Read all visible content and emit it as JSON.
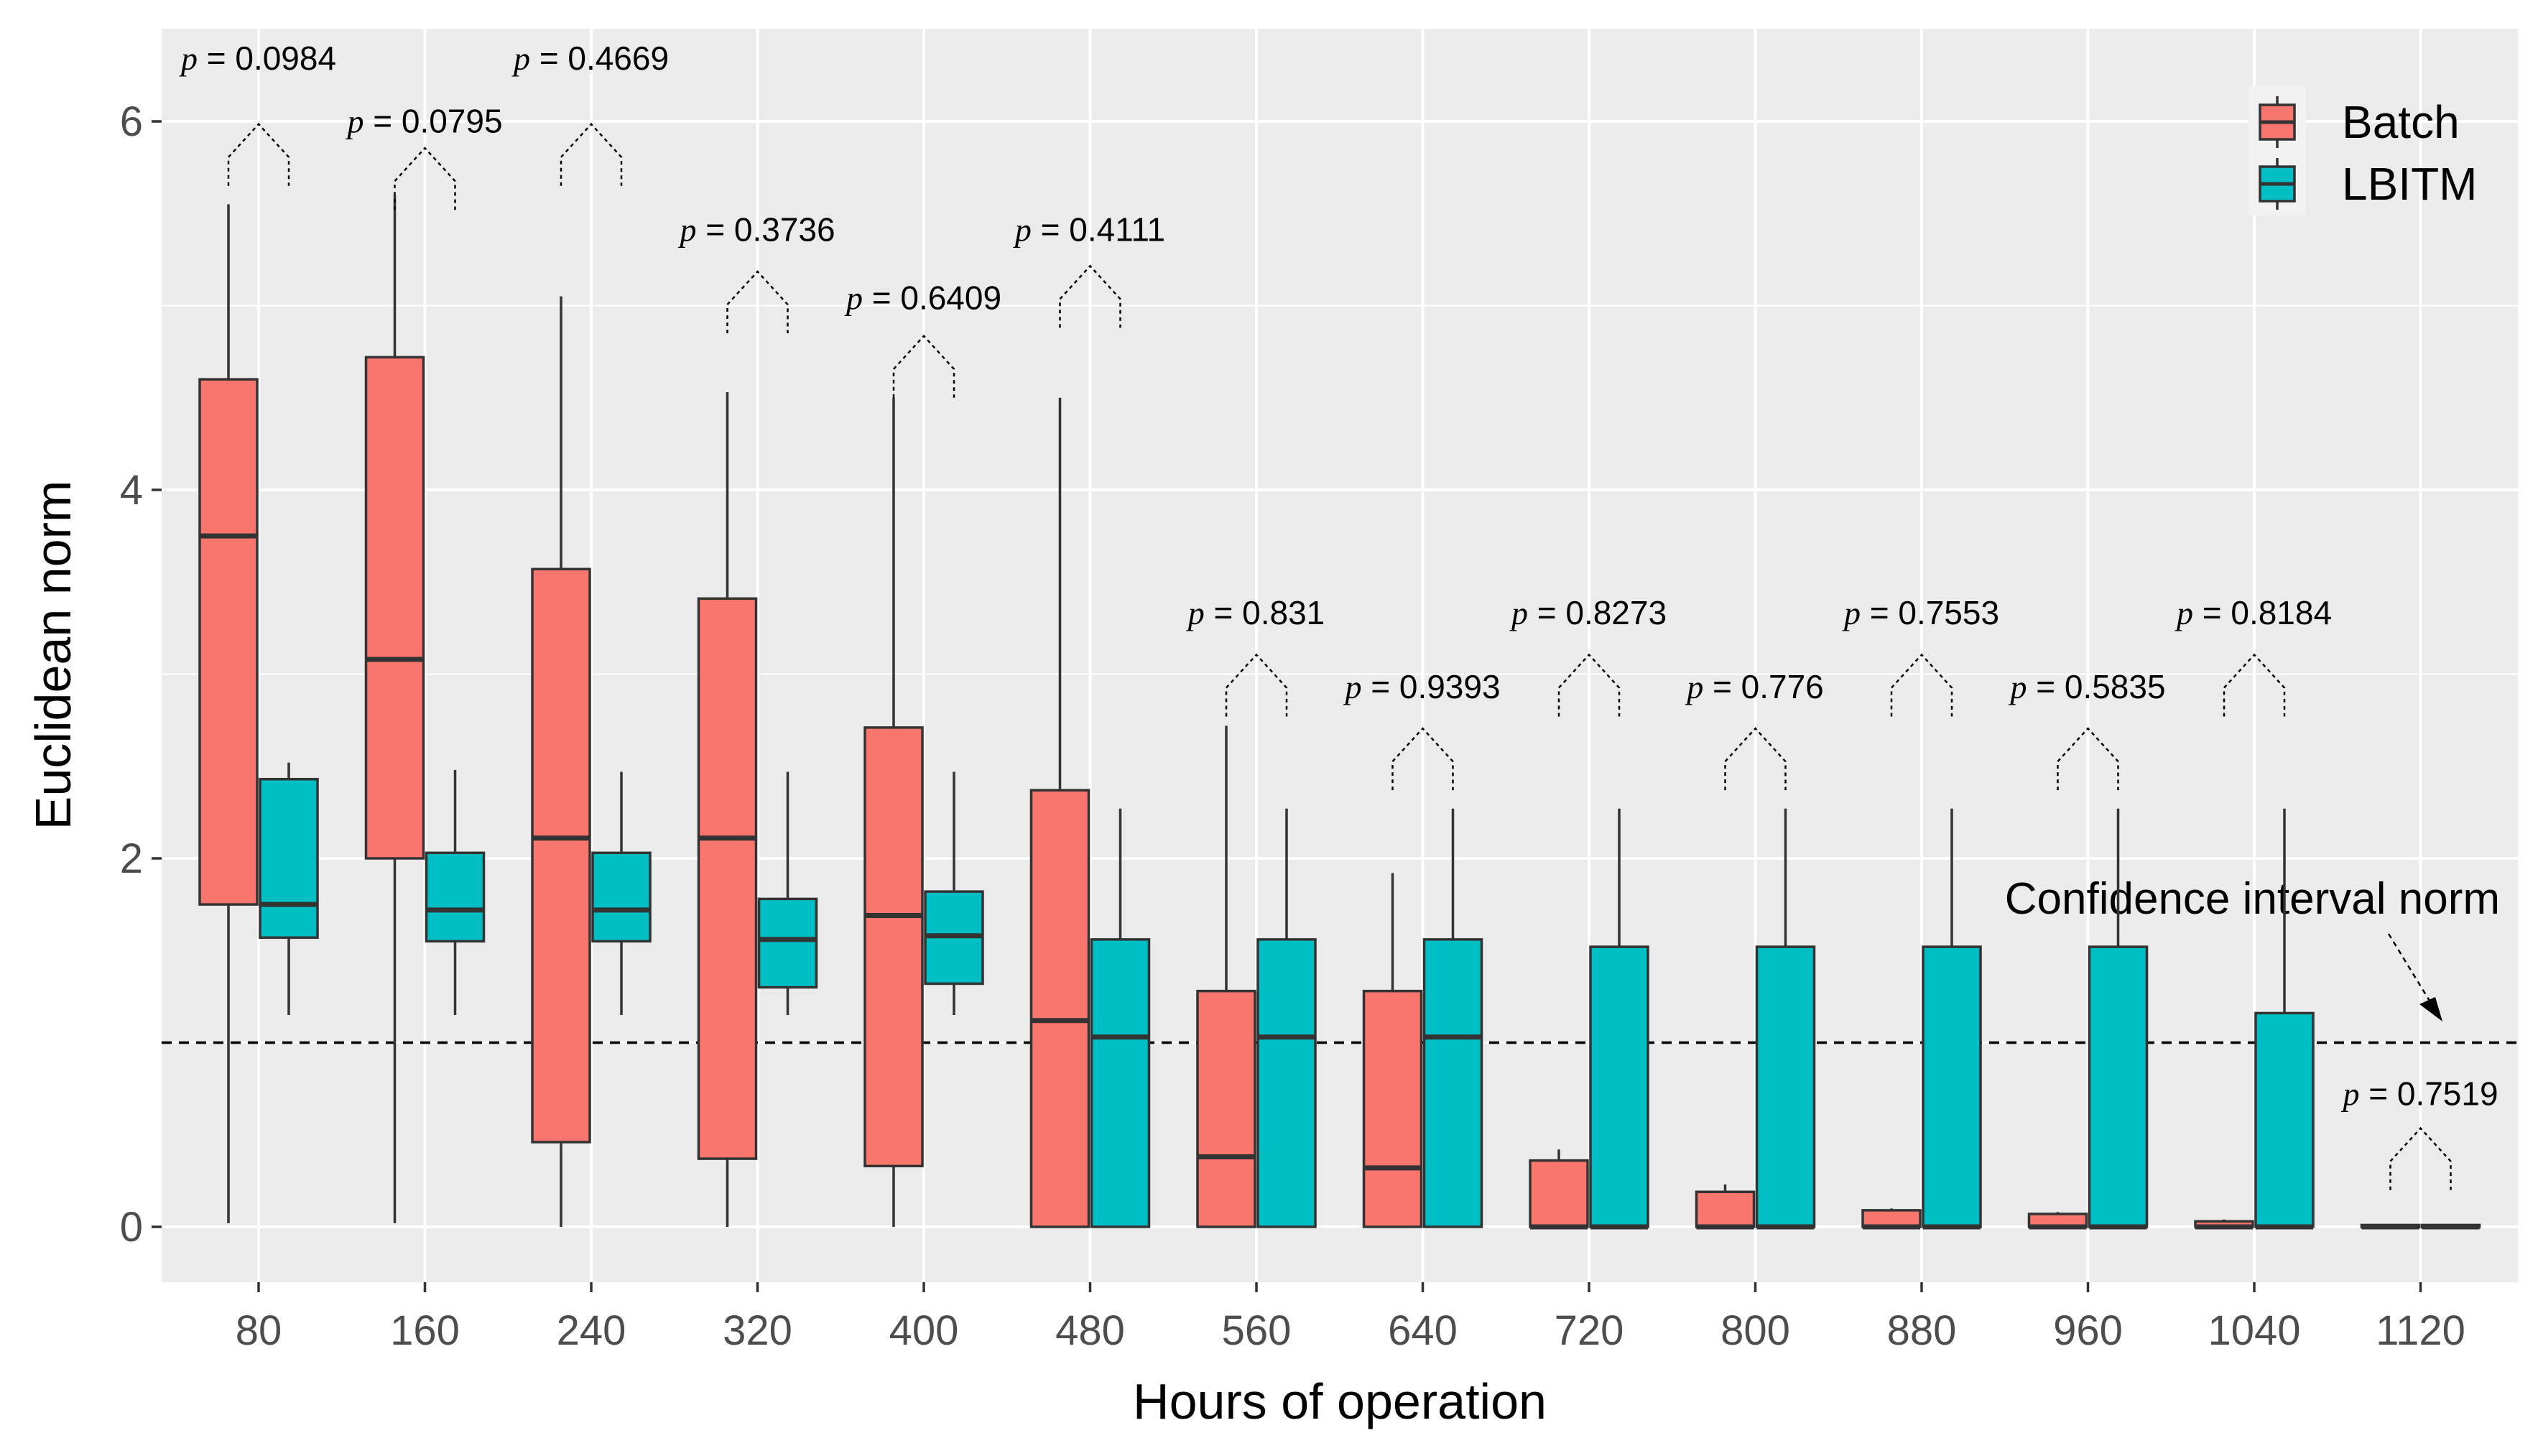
{
  "chart_data": {
    "type": "boxplot",
    "xlabel": "Hours of operation",
    "ylabel": "Euclidean norm",
    "ylim": [
      -0.3,
      6.5
    ],
    "y_ticks": [
      0,
      2,
      4,
      6
    ],
    "categories": [
      "80",
      "160",
      "240",
      "320",
      "400",
      "480",
      "560",
      "640",
      "720",
      "800",
      "880",
      "960",
      "1040",
      "1120"
    ],
    "legend": {
      "position": "top-right",
      "entries": [
        "Batch",
        "LBITM"
      ]
    },
    "colors": {
      "Batch": "#F8766D",
      "LBITM": "#00BFC4",
      "panel": "#EBEBEB",
      "grid": "#FFFFFF",
      "tick_text": "#4D4D4D"
    },
    "series": [
      {
        "name": "Batch",
        "boxes": [
          {
            "min": 0.02,
            "q1": 1.75,
            "median": 3.75,
            "q3": 4.6,
            "max": 5.55
          },
          {
            "min": 0.02,
            "q1": 2.0,
            "median": 3.08,
            "q3": 4.72,
            "max": 5.6
          },
          {
            "min": 0.0,
            "q1": 0.46,
            "median": 2.11,
            "q3": 3.57,
            "max": 5.05
          },
          {
            "min": 0.0,
            "q1": 0.37,
            "median": 2.11,
            "q3": 3.41,
            "max": 4.53
          },
          {
            "min": 0.0,
            "q1": 0.33,
            "median": 1.69,
            "q3": 2.71,
            "max": 4.5
          },
          {
            "min": 0.0,
            "q1": 0.0,
            "median": 1.12,
            "q3": 2.37,
            "max": 4.5
          },
          {
            "min": 0.0,
            "q1": 0.0,
            "median": 0.38,
            "q3": 1.28,
            "max": 2.72
          },
          {
            "min": 0.0,
            "q1": 0.0,
            "median": 0.32,
            "q3": 1.28,
            "max": 1.92
          },
          {
            "min": 0.0,
            "q1": 0.0,
            "median": 0.0,
            "q3": 0.36,
            "max": 0.42
          },
          {
            "min": 0.0,
            "q1": 0.0,
            "median": 0.0,
            "q3": 0.19,
            "max": 0.23
          },
          {
            "min": 0.0,
            "q1": 0.0,
            "median": 0.0,
            "q3": 0.09,
            "max": 0.1
          },
          {
            "min": 0.0,
            "q1": 0.0,
            "median": 0.0,
            "q3": 0.07,
            "max": 0.08
          },
          {
            "min": 0.0,
            "q1": 0.0,
            "median": 0.0,
            "q3": 0.03,
            "max": 0.04
          },
          {
            "min": 0.0,
            "q1": 0.0,
            "median": 0.0,
            "q3": 0.01,
            "max": 0.01
          }
        ]
      },
      {
        "name": "LBITM",
        "boxes": [
          {
            "min": 1.15,
            "q1": 1.57,
            "median": 1.75,
            "q3": 2.43,
            "max": 2.52
          },
          {
            "min": 1.15,
            "q1": 1.55,
            "median": 1.72,
            "q3": 2.03,
            "max": 2.48
          },
          {
            "min": 1.15,
            "q1": 1.55,
            "median": 1.72,
            "q3": 2.03,
            "max": 2.47
          },
          {
            "min": 1.15,
            "q1": 1.3,
            "median": 1.56,
            "q3": 1.78,
            "max": 2.47
          },
          {
            "min": 1.15,
            "q1": 1.32,
            "median": 1.58,
            "q3": 1.82,
            "max": 2.47
          },
          {
            "min": 0.0,
            "q1": 0.0,
            "median": 1.03,
            "q3": 1.56,
            "max": 2.27
          },
          {
            "min": 0.0,
            "q1": 0.0,
            "median": 1.03,
            "q3": 1.56,
            "max": 2.27
          },
          {
            "min": 0.0,
            "q1": 0.0,
            "median": 1.03,
            "q3": 1.56,
            "max": 2.27
          },
          {
            "min": 0.0,
            "q1": 0.0,
            "median": 0.0,
            "q3": 1.52,
            "max": 2.27
          },
          {
            "min": 0.0,
            "q1": 0.0,
            "median": 0.0,
            "q3": 1.52,
            "max": 2.27
          },
          {
            "min": 0.0,
            "q1": 0.0,
            "median": 0.0,
            "q3": 1.52,
            "max": 2.27
          },
          {
            "min": 0.0,
            "q1": 0.0,
            "median": 0.0,
            "q3": 1.52,
            "max": 2.27
          },
          {
            "min": 0.0,
            "q1": 0.0,
            "median": 0.0,
            "q3": 1.16,
            "max": 2.27
          },
          {
            "min": 0.0,
            "q1": 0.0,
            "median": 0.0,
            "q3": 0.01,
            "max": 0.01
          }
        ]
      }
    ],
    "reference_line": {
      "y": 1.0,
      "style": "dashed",
      "label": "Confidence interval norm"
    },
    "p_values": [
      {
        "category": "80",
        "text": "0.0984",
        "bracket_y": 5.65,
        "label_y": 6.28
      },
      {
        "category": "160",
        "text": "0.0795",
        "bracket_y": 5.52,
        "label_y": 5.94
      },
      {
        "category": "240",
        "text": "0.4669",
        "bracket_y": 5.65,
        "label_y": 6.28
      },
      {
        "category": "320",
        "text": "0.3736",
        "bracket_y": 4.85,
        "label_y": 5.35
      },
      {
        "category": "400",
        "text": "0.6409",
        "bracket_y": 4.5,
        "label_y": 4.98
      },
      {
        "category": "480",
        "text": "0.4111",
        "bracket_y": 4.88,
        "label_y": 5.35
      },
      {
        "category": "560",
        "text": "0.831",
        "bracket_y": 2.77,
        "label_y": 3.27
      },
      {
        "category": "640",
        "text": "0.9393",
        "bracket_y": 2.37,
        "label_y": 2.87
      },
      {
        "category": "720",
        "text": "0.8273",
        "bracket_y": 2.77,
        "label_y": 3.27
      },
      {
        "category": "800",
        "text": "0.776",
        "bracket_y": 2.37,
        "label_y": 2.87
      },
      {
        "category": "880",
        "text": "0.7553",
        "bracket_y": 2.77,
        "label_y": 3.27
      },
      {
        "category": "960",
        "text": "0.5835",
        "bracket_y": 2.37,
        "label_y": 2.87
      },
      {
        "category": "1040",
        "text": "0.8184",
        "bracket_y": 2.77,
        "label_y": 3.27
      },
      {
        "category": "1120",
        "text": "0.7519",
        "bracket_y": 0.2,
        "label_y": 0.66
      }
    ],
    "p_prefix": "p",
    "p_equals": " = "
  }
}
